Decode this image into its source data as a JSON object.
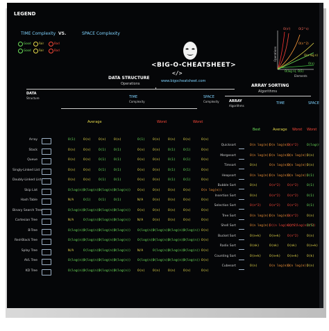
{
  "legend": {
    "title": "LEGEND",
    "time": "TIME Complexity",
    "vs": "VS.",
    "space": "SPACE Complexity",
    "chips": [
      "Good",
      "Fair",
      "Bad",
      "Good",
      "Fair",
      "Bad"
    ]
  },
  "brand": {
    "name": "<BIG-O-CHEATSHEET>",
    "code": "</>",
    "url": "www.bigocheatsheet.com"
  },
  "graph": {
    "labels": [
      "O(n!)",
      "O(2^n)",
      "O(n^2)",
      "O(n log n)",
      "O(n)",
      "O(log n), O(1)"
    ],
    "xaxis": "Elements",
    "yaxis": "Operations"
  },
  "sections": {
    "ds": {
      "title": "DATA STRUCTURE",
      "sub": "Operations"
    },
    "sort": {
      "title": "ARRAY SORTING",
      "sub": "Algorithms"
    },
    "data": "DATA",
    "structure": "Structure",
    "time": "TIME",
    "complexity": "Complexity",
    "space": "SPACE",
    "scomplexity": "Complexity",
    "average": "Average",
    "worst": "Worst",
    "best": "Best",
    "array": "ARRAY",
    "algorithms": "Algorithms"
  },
  "ds_rows": [
    "Array",
    "Stack",
    "Queue",
    "Singly-Linked List",
    "Doubly-Linked List",
    "Skip List",
    "Hash Table",
    "Binary Search Tree",
    "Cartesian Tree",
    "B-Tree",
    "Red-Black Tree",
    "Splay Tree",
    "AVL Tree",
    "KD Tree"
  ],
  "ds_cells": [
    [
      "O(1)",
      "O(n)",
      "O(n)",
      "O(n)",
      "O(1)",
      "O(n)",
      "O(n)",
      "O(n)",
      "O(n)"
    ],
    [
      "O(n)",
      "O(n)",
      "O(1)",
      "O(1)",
      "O(n)",
      "O(n)",
      "O(1)",
      "O(1)",
      "O(n)"
    ],
    [
      "O(n)",
      "O(n)",
      "O(1)",
      "O(1)",
      "O(n)",
      "O(n)",
      "O(1)",
      "O(1)",
      "O(n)"
    ],
    [
      "O(n)",
      "O(n)",
      "O(1)",
      "O(1)",
      "O(n)",
      "O(n)",
      "O(1)",
      "O(1)",
      "O(n)"
    ],
    [
      "O(n)",
      "O(n)",
      "O(1)",
      "O(1)",
      "O(n)",
      "O(n)",
      "O(1)",
      "O(1)",
      "O(n)"
    ],
    [
      "O(log(n))",
      "O(log(n))",
      "O(log(n))",
      "O(log(n))",
      "O(n)",
      "O(n)",
      "O(n)",
      "O(n)",
      "O(n log(n))"
    ],
    [
      "N/A",
      "O(1)",
      "O(1)",
      "O(1)",
      "N/A",
      "O(n)",
      "O(n)",
      "O(n)",
      "O(n)"
    ],
    [
      "O(log(n))",
      "O(log(n))",
      "O(log(n))",
      "O(log(n))",
      "O(n)",
      "O(n)",
      "O(n)",
      "O(n)",
      "O(n)"
    ],
    [
      "N/A",
      "O(log(n))",
      "O(log(n))",
      "O(log(n))",
      "N/A",
      "O(n)",
      "O(n)",
      "O(n)",
      "O(n)"
    ],
    [
      "O(log(n))",
      "O(log(n))",
      "O(log(n))",
      "O(log(n))",
      "O(log(n))",
      "O(log(n))",
      "O(log(n))",
      "O(log(n))",
      "O(n)"
    ],
    [
      "O(log(n))",
      "O(log(n))",
      "O(log(n))",
      "O(log(n))",
      "O(log(n))",
      "O(log(n))",
      "O(log(n))",
      "O(log(n))",
      "O(n)"
    ],
    [
      "N/A",
      "O(log(n))",
      "O(log(n))",
      "O(log(n))",
      "N/A",
      "O(log(n))",
      "O(log(n))",
      "O(log(n))",
      "O(n)"
    ],
    [
      "O(log(n))",
      "O(log(n))",
      "O(log(n))",
      "O(log(n))",
      "O(log(n))",
      "O(log(n))",
      "O(log(n))",
      "O(log(n))",
      "O(n)"
    ],
    [
      "O(log(n))",
      "O(log(n))",
      "O(log(n))",
      "O(log(n))",
      "O(n)",
      "O(n)",
      "O(n)",
      "O(n)",
      "O(n)"
    ]
  ],
  "sort_rows": [
    "Quicksort",
    "Mergesort",
    "Timsort",
    "Heapsort",
    "Bubble Sort",
    "Insertion Sort",
    "Selection Sort",
    "Tree Sort",
    "Shell Sort",
    "Bucket Sort",
    "Radix Sort",
    "Counting Sort",
    "Cubesort"
  ],
  "sort_cells": [
    [
      "O(n log(n))",
      "O(n log(n))",
      "O(n^2)",
      "O(log(n))"
    ],
    [
      "O(n log(n))",
      "O(n log(n))",
      "O(n log(n))",
      "O(n)"
    ],
    [
      "O(n)",
      "O(n log(n))",
      "O(n log(n))",
      "O(n)"
    ],
    [
      "O(n log(n))",
      "O(n log(n))",
      "O(n log(n))",
      "O(1)"
    ],
    [
      "O(n)",
      "O(n^2)",
      "O(n^2)",
      "O(1)"
    ],
    [
      "O(n)",
      "O(n^2)",
      "O(n^2)",
      "O(1)"
    ],
    [
      "O(n^2)",
      "O(n^2)",
      "O(n^2)",
      "O(1)"
    ],
    [
      "O(n log(n))",
      "O(n log(n))",
      "O(n^2)",
      "O(n)"
    ],
    [
      "O(n log(n))",
      "O((n log(n))^2)",
      "O((n log(n))^2)",
      "O(1)"
    ],
    [
      "O(n+k)",
      "O(n+k)",
      "O(n^2)",
      "O(n)"
    ],
    [
      "O(nk)",
      "O(nk)",
      "O(nk)",
      "O(n+k)"
    ],
    [
      "O(n+k)",
      "O(n+k)",
      "O(n+k)",
      "O(k)"
    ],
    [
      "O(n)",
      "O(n log(n))",
      "O(n log(n))",
      "O(n)"
    ]
  ],
  "colors": {
    "good": "#6fe35b",
    "fair": "#e6d94a",
    "bad": "#ff4a3a",
    "orange": "#ff9b3a",
    "accent": "#7fd3ff"
  }
}
